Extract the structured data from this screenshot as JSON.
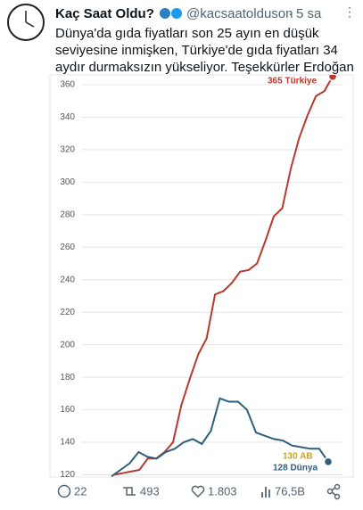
{
  "tweet": {
    "author": "Kaç Saat Oldu?",
    "handle": "@kacsaatolduson",
    "separator": "·",
    "time": "5 sa",
    "text_lines": [
      "Dünya'da gıda fiyatları son 25 ayın en düşük",
      "seviyesine inmişken, Türkiye'de gıda fiyatları 34",
      "aydır durmaksızın yükseliyor. Teşekkürler Erdoğan"
    ],
    "stats": {
      "replies": "22",
      "retweets": "493",
      "likes": "1.803",
      "views": "76,5B"
    }
  },
  "chart_data": {
    "type": "line",
    "ylim": [
      120,
      360
    ],
    "yticks": [
      120,
      140,
      160,
      180,
      200,
      220,
      240,
      260,
      280,
      300,
      320,
      340,
      360
    ],
    "grid": true,
    "annotations": [
      "365 Türkiye",
      "130 AB",
      "128 Dünya"
    ],
    "series": [
      {
        "name": "Türkiye",
        "color": "#b5392f",
        "values": [
          120,
          121,
          122,
          123,
          130,
          130,
          134,
          140,
          163,
          179,
          194,
          204,
          231,
          233,
          238,
          245,
          246,
          250,
          264,
          279,
          284,
          308,
          327,
          341,
          353,
          356,
          365
        ]
      },
      {
        "name": "Dünya",
        "color": "#2e5f7c",
        "values": [
          119,
          123,
          127,
          134,
          131,
          130,
          134,
          136,
          140,
          142,
          139,
          147,
          167,
          165,
          165,
          160,
          146,
          144,
          142,
          141,
          138,
          137,
          136,
          136,
          128
        ]
      }
    ]
  }
}
